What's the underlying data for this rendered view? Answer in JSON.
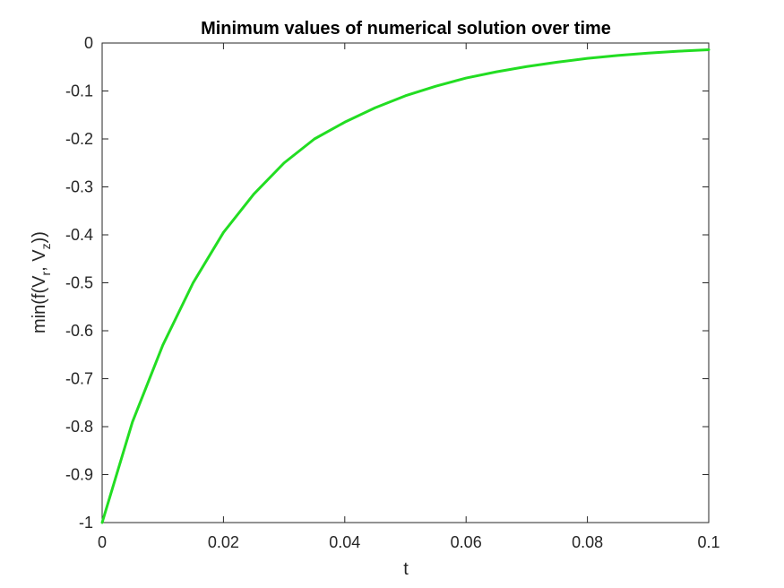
{
  "chart_data": {
    "type": "line",
    "title": "Minimum values of numerical solution over time",
    "xlabel": "t",
    "ylabel": {
      "prefix": "min(f(V",
      "sub1": "r",
      "middle": ", V",
      "sub2": "z",
      "suffix": "))"
    },
    "xlim": [
      0,
      0.1
    ],
    "ylim": [
      -1,
      0
    ],
    "xticks": [
      0,
      0.02,
      0.04,
      0.06,
      0.08,
      0.1
    ],
    "xtick_labels": [
      "0",
      "0.02",
      "0.04",
      "0.06",
      "0.08",
      "0.1"
    ],
    "yticks": [
      0,
      -0.1,
      -0.2,
      -0.3,
      -0.4,
      -0.5,
      -0.6,
      -0.7,
      -0.8,
      -0.9,
      -1
    ],
    "ytick_labels": [
      "0",
      "-0.1",
      "-0.2",
      "-0.3",
      "-0.4",
      "-0.5",
      "-0.6",
      "-0.7",
      "-0.8",
      "-0.9",
      "-1"
    ],
    "grid": false,
    "series": [
      {
        "color": "#22dd22",
        "x": [
          0,
          0.005,
          0.01,
          0.015,
          0.02,
          0.025,
          0.03,
          0.035,
          0.04,
          0.045,
          0.05,
          0.055,
          0.06,
          0.065,
          0.07,
          0.075,
          0.08,
          0.085,
          0.09,
          0.095,
          0.1
        ],
        "y": [
          -1,
          -0.79,
          -0.63,
          -0.5,
          -0.395,
          -0.315,
          -0.25,
          -0.2,
          -0.165,
          -0.135,
          -0.11,
          -0.09,
          -0.073,
          -0.06,
          -0.049,
          -0.04,
          -0.032,
          -0.026,
          -0.021,
          -0.017,
          -0.014
        ]
      }
    ]
  }
}
